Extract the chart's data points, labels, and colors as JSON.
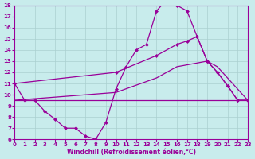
{
  "background_color": "#c8ecec",
  "line_color": "#990099",
  "grid_color": "#aad0d0",
  "xlabel": "Windchill (Refroidissement éolien,°C)",
  "xlim": [
    0,
    23
  ],
  "ylim": [
    6,
    18
  ],
  "xticks": [
    0,
    1,
    2,
    3,
    4,
    5,
    6,
    7,
    8,
    9,
    10,
    11,
    12,
    13,
    14,
    15,
    16,
    17,
    18,
    19,
    20,
    21,
    22,
    23
  ],
  "yticks": [
    6,
    7,
    8,
    9,
    10,
    11,
    12,
    13,
    14,
    15,
    16,
    17,
    18
  ],
  "line1_x": [
    0,
    1,
    2,
    3,
    4,
    5,
    6,
    7,
    8,
    9,
    10,
    11,
    12,
    13,
    14,
    15,
    16,
    17,
    18,
    19,
    20,
    21,
    22,
    23
  ],
  "line1_y": [
    11.0,
    9.5,
    9.5,
    8.5,
    7.8,
    7.0,
    7.0,
    6.3,
    6.0,
    7.5,
    10.5,
    12.5,
    14.0,
    14.5,
    17.5,
    18.5,
    18.0,
    17.5,
    15.2,
    13.0,
    12.0,
    10.8,
    9.5,
    9.5
  ],
  "line2_x": [
    0,
    23
  ],
  "line2_y": [
    9.5,
    9.5
  ],
  "line3_x": [
    0,
    10,
    14,
    16,
    19,
    20,
    21,
    22,
    23
  ],
  "line3_y": [
    9.5,
    10.2,
    11.5,
    12.5,
    13.0,
    12.5,
    11.5,
    10.5,
    9.5
  ],
  "line4_x": [
    0,
    10,
    14,
    16,
    17,
    18,
    19,
    20,
    21,
    22,
    23
  ],
  "line4_y": [
    11.0,
    12.0,
    13.5,
    14.5,
    14.8,
    15.2,
    13.0,
    12.0,
    10.8,
    9.5,
    9.5
  ]
}
